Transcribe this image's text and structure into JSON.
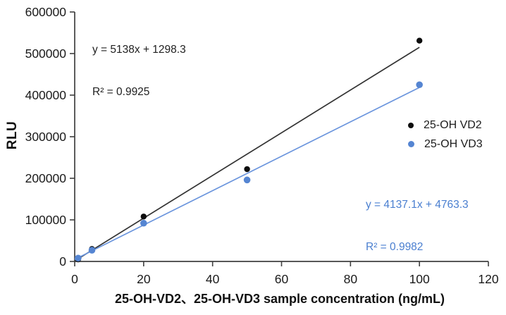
{
  "chart_data": {
    "type": "scatter",
    "title": "",
    "xlabel": "25-OH-VD2、25-OH-VD3 sample concentration (ng/mL)",
    "ylabel": "RLU",
    "xlim": [
      0,
      120
    ],
    "ylim": [
      0,
      600000
    ],
    "xticks": [
      0,
      20,
      40,
      60,
      80,
      100,
      120
    ],
    "yticks": [
      0,
      100000,
      200000,
      300000,
      400000,
      500000,
      600000
    ],
    "grid": false,
    "legend_position": "middle-right",
    "axis_color": "#3f3f3f",
    "tick_label_color": "#1a1a1a",
    "series": [
      {
        "name": "25-OH VD2",
        "color": "#0d0d0d",
        "line_color": "#333333",
        "x": [
          1,
          5,
          20,
          50,
          100
        ],
        "y": [
          5000,
          30000,
          108000,
          222000,
          531000
        ],
        "trendline": {
          "slope": 5138,
          "intercept": 1298.3,
          "x_range": [
            0,
            100
          ]
        },
        "equation": "y = 5138x + 1298.3",
        "r_squared": "R² = 0.9925",
        "annotation_color": "#212121"
      },
      {
        "name": "25-OH VD3",
        "color": "#5585d2",
        "line_color": "#6b95dd",
        "x": [
          1,
          5,
          20,
          50,
          100
        ],
        "y": [
          8000,
          27000,
          92000,
          196000,
          425000
        ],
        "trendline": {
          "slope": 4137.1,
          "intercept": 4763.3,
          "x_range": [
            0,
            100
          ]
        },
        "equation": "y = 4137.1x + 4763.3",
        "r_squared": "R² = 0.9982",
        "annotation_color": "#4a7fd0"
      }
    ]
  }
}
